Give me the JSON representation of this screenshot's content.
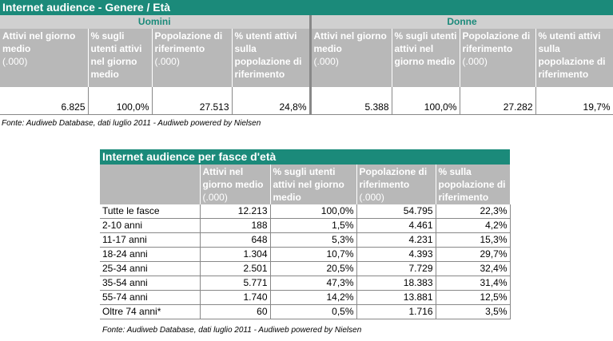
{
  "table1": {
    "title": "Internet audience - Genere / Età",
    "groups": [
      "Uomini",
      "Donne"
    ],
    "headers": [
      {
        "text": "Attivi nel giorno medio",
        "unit": "(.000)"
      },
      {
        "text": "% sugli utenti attivi nel giorno medio"
      },
      {
        "text": "Popolazione di riferimento",
        "unit": "(.000)"
      },
      {
        "text": "% utenti attivi sulla popolazione di riferimento"
      },
      {
        "text": "Attivi nel giorno medio",
        "unit": "(.000)"
      },
      {
        "text": "% sugli utenti attivi nel giorno medio"
      },
      {
        "text": "Popolazione di riferimento",
        "unit": "(.000)"
      },
      {
        "text": "% utenti attivi sulla popolazione di riferimento"
      }
    ],
    "row": [
      "6.825",
      "100,0%",
      "27.513",
      "24,8%",
      "5.388",
      "100,0%",
      "27.282",
      "19,7%"
    ],
    "source": "Fonte: Audiweb Database, dati luglio 2011 - Audiweb powered by Nielsen"
  },
  "table2": {
    "title": "Internet audience per fasce d'età",
    "headers": [
      {
        "text": "Attivi nel giorno medio",
        "unit": "(.000)"
      },
      {
        "text": "% sugli utenti attivi nel giorno medio"
      },
      {
        "text": "Popolazione di riferimento",
        "unit": "(.000)"
      },
      {
        "text": "% sulla popolazione di riferimento"
      }
    ],
    "rows": [
      [
        "Tutte le fasce",
        "12.213",
        "100,0%",
        "54.795",
        "22,3%"
      ],
      [
        "2-10 anni",
        "188",
        "1,5%",
        "4.461",
        "4,2%"
      ],
      [
        "11-17 anni",
        "648",
        "5,3%",
        "4.231",
        "15,3%"
      ],
      [
        "18-24 anni",
        "1.304",
        "10,7%",
        "4.393",
        "29,7%"
      ],
      [
        "25-34 anni",
        "2.501",
        "20,5%",
        "7.729",
        "32,4%"
      ],
      [
        "35-54 anni",
        "5.771",
        "47,3%",
        "18.383",
        "31,4%"
      ],
      [
        "55-74 anni",
        "1.740",
        "14,2%",
        "13.881",
        "12,5%"
      ],
      [
        "Oltre 74 anni*",
        "60",
        "0,5%",
        "1.716",
        "3,5%"
      ]
    ],
    "source": "Fonte: Audiweb Database, dati luglio 2011 - Audiweb powered by Nielsen"
  }
}
